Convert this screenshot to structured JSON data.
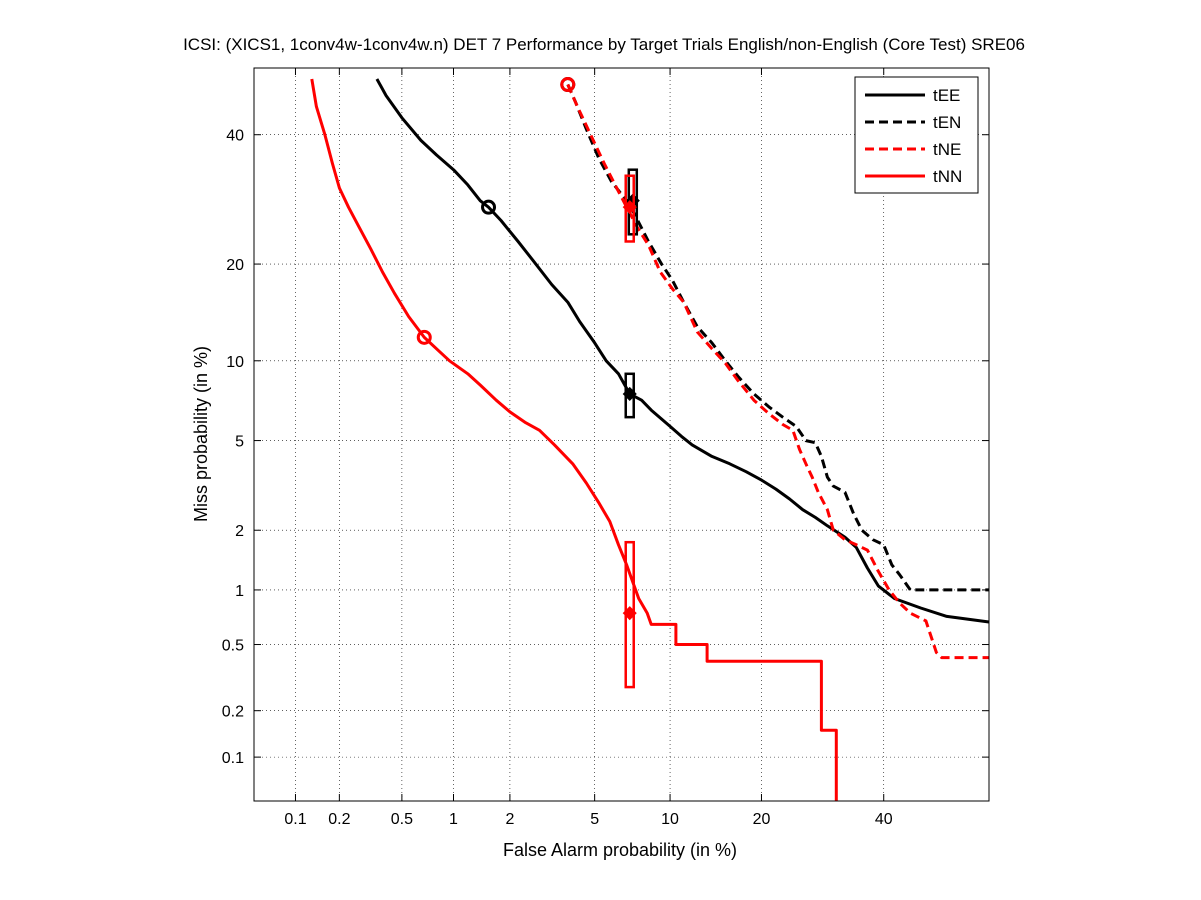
{
  "chart_data": {
    "type": "line",
    "title": "ICSI: (XICS1, 1conv4w-1conv4w.n) DET 7 Performance by Target Trials English/non-English (Core Test) SRE06",
    "xlabel": "False Alarm probability (in %)",
    "ylabel": "Miss probability (in %)",
    "x_scale": "probit",
    "y_scale": "probit",
    "xlim": [
      0.05,
      60
    ],
    "ylim": [
      0.05,
      52
    ],
    "x_ticks": [
      0.1,
      0.2,
      0.5,
      1,
      2,
      5,
      10,
      20,
      40
    ],
    "x_tick_labels": [
      "0.1",
      "0.2",
      "0.5",
      "1",
      "2",
      "5",
      "10",
      "20",
      "40"
    ],
    "y_ticks": [
      0.1,
      0.2,
      0.5,
      1,
      2,
      5,
      10,
      20,
      40
    ],
    "y_tick_labels": [
      "0.1",
      "0.2",
      "0.5",
      "1",
      "2",
      "5",
      "10",
      "20",
      "40"
    ],
    "grid": true,
    "legend_position": "top-right",
    "series": [
      {
        "name": "tEE",
        "color": "#000000",
        "dash": "solid",
        "points": [
          [
            0.35,
            50
          ],
          [
            0.4,
            47
          ],
          [
            0.5,
            43
          ],
          [
            0.65,
            39
          ],
          [
            0.8,
            36.5
          ],
          [
            1.0,
            34
          ],
          [
            1.2,
            31.5
          ],
          [
            1.4,
            29
          ],
          [
            1.55,
            28
          ],
          [
            1.8,
            26
          ],
          [
            2.2,
            23
          ],
          [
            2.6,
            20.5
          ],
          [
            3.2,
            17.5
          ],
          [
            3.8,
            15.5
          ],
          [
            4.3,
            13.5
          ],
          [
            5.0,
            11.5
          ],
          [
            5.6,
            10
          ],
          [
            6.3,
            9
          ],
          [
            7.0,
            7.6
          ],
          [
            7.8,
            7.2
          ],
          [
            8.5,
            6.6
          ],
          [
            10,
            5.7
          ],
          [
            11,
            5.2
          ],
          [
            12,
            4.8
          ],
          [
            14,
            4.3
          ],
          [
            16,
            4.0
          ],
          [
            18,
            3.7
          ],
          [
            20,
            3.4
          ],
          [
            22,
            3.1
          ],
          [
            24,
            2.8
          ],
          [
            26,
            2.5
          ],
          [
            28,
            2.3
          ],
          [
            30,
            2.1
          ],
          [
            33,
            1.85
          ],
          [
            35,
            1.65
          ],
          [
            37,
            1.3
          ],
          [
            39,
            1.05
          ],
          [
            42,
            0.9
          ],
          [
            47,
            0.8
          ],
          [
            52,
            0.72
          ],
          [
            60,
            0.67
          ]
        ]
      },
      {
        "name": "tEN",
        "color": "#000000",
        "dash": "dashed",
        "points": [
          [
            3.8,
            49
          ],
          [
            4.1,
            46
          ],
          [
            4.6,
            41
          ],
          [
            5.2,
            36
          ],
          [
            5.9,
            32
          ],
          [
            6.8,
            29
          ],
          [
            7.3,
            27
          ],
          [
            8.3,
            23
          ],
          [
            9.3,
            20
          ],
          [
            10.2,
            18
          ],
          [
            11.2,
            15.5
          ],
          [
            12.5,
            13
          ],
          [
            14,
            11.5
          ],
          [
            15.5,
            10
          ],
          [
            17,
            8.8
          ],
          [
            19,
            7.6
          ],
          [
            21,
            6.8
          ],
          [
            23,
            6.2
          ],
          [
            25,
            5.7
          ],
          [
            26.5,
            5.0
          ],
          [
            28,
            4.9
          ],
          [
            29,
            4.3
          ],
          [
            30,
            3.5
          ],
          [
            31,
            3.2
          ],
          [
            33,
            3.0
          ],
          [
            34.5,
            2.4
          ],
          [
            36,
            2.0
          ],
          [
            38,
            1.8
          ],
          [
            40,
            1.7
          ],
          [
            41.5,
            1.35
          ],
          [
            43,
            1.2
          ],
          [
            45,
            1.0
          ],
          [
            60,
            1.0
          ]
        ]
      },
      {
        "name": "tNE",
        "color": "#ff0000",
        "dash": "dashed",
        "points": [
          [
            3.8,
            49
          ],
          [
            4.2,
            45
          ],
          [
            4.8,
            40
          ],
          [
            5.5,
            35
          ],
          [
            6.1,
            31.5
          ],
          [
            6.7,
            28.5
          ],
          [
            7.5,
            25
          ],
          [
            8.3,
            22.5
          ],
          [
            9.2,
            19
          ],
          [
            10.2,
            17
          ],
          [
            11.2,
            15.5
          ],
          [
            12.5,
            12.5
          ],
          [
            14,
            11
          ],
          [
            15.5,
            9.8
          ],
          [
            17,
            8.5
          ],
          [
            19,
            7.2
          ],
          [
            21,
            6.4
          ],
          [
            23,
            5.8
          ],
          [
            24.5,
            5.5
          ],
          [
            25.5,
            4.6
          ],
          [
            26.5,
            4.0
          ],
          [
            27.5,
            3.5
          ],
          [
            28.5,
            3.0
          ],
          [
            30,
            2.5
          ],
          [
            31,
            2.0
          ],
          [
            33,
            1.8
          ],
          [
            35,
            1.7
          ],
          [
            37,
            1.6
          ],
          [
            39,
            1.25
          ],
          [
            41,
            1.0
          ],
          [
            43,
            0.85
          ],
          [
            45,
            0.75
          ],
          [
            48,
            0.68
          ],
          [
            50,
            0.45
          ],
          [
            51,
            0.42
          ],
          [
            60,
            0.42
          ]
        ]
      },
      {
        "name": "tNN",
        "color": "#ff0000",
        "dash": "solid",
        "points": [
          [
            0.13,
            50
          ],
          [
            0.14,
            45
          ],
          [
            0.16,
            40
          ],
          [
            0.18,
            35
          ],
          [
            0.2,
            31
          ],
          [
            0.23,
            28
          ],
          [
            0.27,
            25
          ],
          [
            0.32,
            22
          ],
          [
            0.38,
            19
          ],
          [
            0.45,
            16.5
          ],
          [
            0.55,
            14
          ],
          [
            0.68,
            12
          ],
          [
            0.8,
            11
          ],
          [
            0.95,
            10
          ],
          [
            1.2,
            9
          ],
          [
            1.4,
            8.2
          ],
          [
            1.7,
            7.2
          ],
          [
            2.0,
            6.5
          ],
          [
            2.4,
            5.9
          ],
          [
            2.8,
            5.5
          ],
          [
            3.3,
            4.8
          ],
          [
            4.0,
            4.0
          ],
          [
            4.6,
            3.3
          ],
          [
            5.2,
            2.7
          ],
          [
            5.8,
            2.2
          ],
          [
            6.3,
            1.7
          ],
          [
            6.8,
            1.35
          ],
          [
            7.2,
            1.1
          ],
          [
            7.6,
            0.9
          ],
          [
            8.2,
            0.75
          ],
          [
            8.5,
            0.65
          ],
          [
            10.5,
            0.65
          ],
          [
            10.5,
            0.5
          ],
          [
            13.5,
            0.5
          ],
          [
            13.5,
            0.4
          ],
          [
            29,
            0.4
          ],
          [
            29,
            0.15
          ],
          [
            31.5,
            0.15
          ],
          [
            31.5,
            0.05
          ]
        ]
      }
    ],
    "markers": [
      {
        "series": "tEE",
        "type": "circle",
        "x": 1.55,
        "y": 28,
        "color": "#000000"
      },
      {
        "series": "tEE",
        "type": "diamond",
        "x": 7.0,
        "y": 7.6,
        "color": "#000000"
      },
      {
        "series": "tEE",
        "type": "ci-box",
        "x": 7.0,
        "y_low": 6.2,
        "y_high": 9.0,
        "color": "#000000"
      },
      {
        "series": "tEN",
        "type": "circle",
        "x": 3.8,
        "y": 49,
        "color": "#000000"
      },
      {
        "series": "tEN",
        "type": "diamond",
        "x": 7.2,
        "y": 29,
        "color": "#000000"
      },
      {
        "series": "tEN",
        "type": "ci-box",
        "x": 7.2,
        "y_low": 24,
        "y_high": 34,
        "color": "#000000"
      },
      {
        "series": "tNE",
        "type": "circle",
        "x": 3.8,
        "y": 49,
        "color": "#ff0000"
      },
      {
        "series": "tNE",
        "type": "diamond",
        "x": 7.0,
        "y": 28,
        "color": "#ff0000"
      },
      {
        "series": "tNE",
        "type": "ci-box",
        "x": 7.0,
        "y_low": 23,
        "y_high": 33,
        "color": "#ff0000"
      },
      {
        "series": "tNN",
        "type": "circle",
        "x": 0.68,
        "y": 12,
        "color": "#ff0000"
      },
      {
        "series": "tNN",
        "type": "diamond",
        "x": 7.0,
        "y": 0.75,
        "color": "#ff0000"
      },
      {
        "series": "tNN",
        "type": "ci-box",
        "x": 7.0,
        "y_low": 0.28,
        "y_high": 1.75,
        "color": "#ff0000"
      }
    ]
  }
}
